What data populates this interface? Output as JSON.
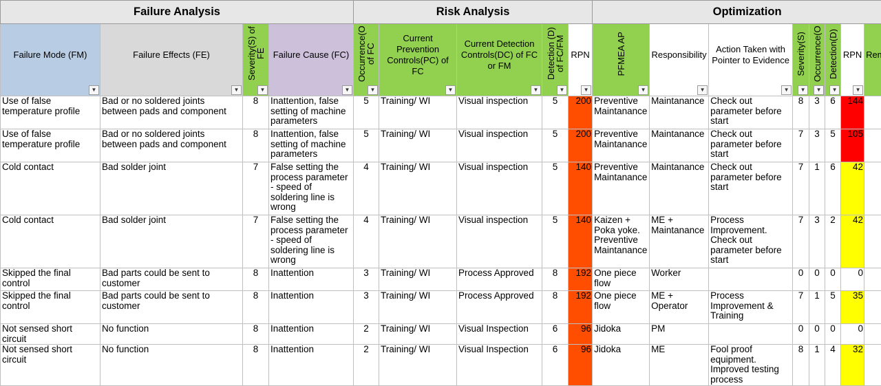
{
  "sections": {
    "failure": "Failure Analysis",
    "risk": "Risk Analysis",
    "optimization": "Optimization"
  },
  "headers": {
    "fm": "Failure Mode (FM)",
    "fe": "Failure Effects (FE)",
    "severity": "Severity(S) of FE",
    "fc": "Failure Cause (FC)",
    "occurrence": "Occurrence(O) of FC",
    "pc": "Current Prevention Controls(PC) of FC",
    "dc": "Current Detection Controls(DC) of FC or FM",
    "detection": "Detection (D) of FC/FM",
    "rpn": "RPN",
    "ap": "PFMEA AP",
    "responsibility": "Responsibility",
    "action": "Action Taken with Pointer to Evidence",
    "s2": "Severity(S)",
    "o2": "Occurrence(O)",
    "d2": "Detection(D)",
    "rpn2": "RPN",
    "remarks": "Remarks"
  },
  "filter_icon": "filter-dropdown-arrow",
  "colors": {
    "rpn_high": "#ff4e00",
    "rpn2_high": "#ff0000",
    "rpn2_mid": "#ffff00"
  },
  "rows": [
    {
      "fm": "Use of false temperature profile",
      "fe": "Bad or no soldered joints between pads and component",
      "s": "8",
      "fc": "Inattention, false setting of machine parameters",
      "o": "5",
      "pc": "Training/ WI",
      "dc": "Visual inspection",
      "d": "5",
      "rpn": "200",
      "ap": "Preventive Maintanance",
      "resp": "Maintanance",
      "action": "Check out parameter before start",
      "s2": "8",
      "o2": "3",
      "d2": "6",
      "rpn2": "144",
      "rpn2_color": "red"
    },
    {
      "fm": "Use of false temperature profile",
      "fe": "Bad or no soldered joints between pads and component",
      "s": "8",
      "fc": "Inattention, false setting of machine parameters",
      "o": "5",
      "pc": "Training/ WI",
      "dc": "Visual inspection",
      "d": "5",
      "rpn": "200",
      "ap": "Preventive Maintanance",
      "resp": "Maintanance",
      "action": "Check out parameter before start",
      "s2": "7",
      "o2": "3",
      "d2": "5",
      "rpn2": "105",
      "rpn2_color": "red"
    },
    {
      "fm": "Cold contact",
      "fe": "Bad solder joint",
      "s": "7",
      "fc": "False setting the process parameter - speed of soldering line is wrong",
      "o": "4",
      "pc": "Training/ WI",
      "dc": "Visual inspection",
      "d": "5",
      "rpn": "140",
      "ap": "Preventive Maintanance",
      "resp": "Maintanance",
      "action": "Check out parameter before start",
      "s2": "7",
      "o2": "1",
      "d2": "6",
      "rpn2": "42",
      "rpn2_color": "yellow"
    },
    {
      "fm": "Cold contact",
      "fe": "Bad solder joint",
      "s": "7",
      "fc": "False setting the process parameter - speed of soldering line is wrong",
      "o": "4",
      "pc": "Training/ WI",
      "dc": "Visual inspection",
      "d": "5",
      "rpn": "140",
      "ap": "Kaizen + Poka yoke. Preventive Maintanance",
      "resp": "ME + Maintanance",
      "action": "Process Improvement. Check out parameter before start",
      "s2": "7",
      "o2": "3",
      "d2": "2",
      "rpn2": "42",
      "rpn2_color": "yellow"
    },
    {
      "fm": "Skipped the final control",
      "fe": "Bad parts could be sent to customer",
      "s": "8",
      "fc": "Inattention",
      "o": "3",
      "pc": "Training/ WI",
      "dc": "Process Approved",
      "d": "8",
      "rpn": "192",
      "ap": "One piece flow",
      "resp": "Worker",
      "action": "",
      "s2": "0",
      "o2": "0",
      "d2": "0",
      "rpn2": "0",
      "rpn2_color": "none"
    },
    {
      "fm": "Skipped the final control",
      "fe": "Bad parts could be sent to customer",
      "s": "8",
      "fc": "Inattention",
      "o": "3",
      "pc": "Training/ WI",
      "dc": "Process Approved",
      "d": "8",
      "rpn": "192",
      "ap": "One piece flow",
      "resp": "ME + Operator",
      "action": "Process Improvement & Training",
      "s2": "7",
      "o2": "1",
      "d2": "5",
      "rpn2": "35",
      "rpn2_color": "yellow"
    },
    {
      "fm": "Not sensed short circuit",
      "fe": "No function",
      "s": "8",
      "fc": "Inattention",
      "o": "2",
      "pc": "Training/ WI",
      "dc": "Visual Inspection",
      "d": "6",
      "rpn": "96",
      "ap": "Jidoka",
      "resp": "PM",
      "action": "",
      "s2": "0",
      "o2": "0",
      "d2": "0",
      "rpn2": "0",
      "rpn2_color": "none"
    },
    {
      "fm": "Not sensed short circuit",
      "fe": "No function",
      "s": "8",
      "fc": "Inattention",
      "o": "2",
      "pc": "Training/ WI",
      "dc": "Visual Inspection",
      "d": "6",
      "rpn": "96",
      "ap": "Jidoka",
      "resp": "ME",
      "action": "Fool proof equipment. Improved testing process",
      "s2": "8",
      "o2": "1",
      "d2": "4",
      "rpn2": "32",
      "rpn2_color": "yellow"
    }
  ]
}
